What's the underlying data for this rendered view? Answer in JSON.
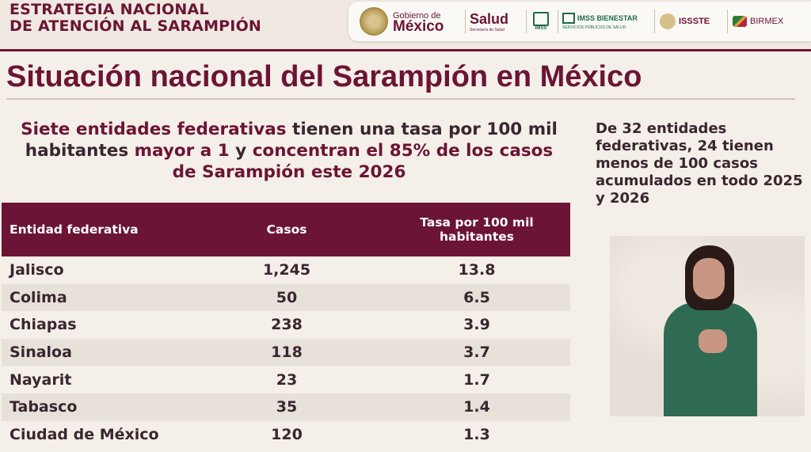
{
  "header": {
    "strategy_line1": "ESTRATEGIA NACIONAL",
    "strategy_line2": "DE ATENCIÓN AL SARAMPIÓN",
    "logos": {
      "gobierno_small": "Gobierno de",
      "gobierno_big": "México",
      "salud": "Salud",
      "salud_sub": "Secretaría de Salud",
      "imss": "IMSS",
      "imss_bienestar": "IMSS BIENESTAR",
      "imss_bienestar_sub": "SERVICIOS PÚBLICOS DE SALUD",
      "issste": "ISSSTE",
      "birmex": "BIRMEX"
    }
  },
  "title": "Situación nacional del Sarampión en México",
  "subhead": {
    "part1": "Siete entidades federativas",
    "part2": " tienen una tasa por 100 mil habitantes ",
    "part3": "mayor a 1",
    "part4": " y ",
    "part5": "concentran el 85% de los casos de Sarampión este 2026"
  },
  "side_note": "De 32 entidades federativas, 24 tienen menos de 100 casos acumulados en todo 2025 y 2026",
  "table": {
    "headers": [
      "Entidad federativa",
      "Casos",
      "Tasa por 100 mil habitantes"
    ],
    "rows": [
      [
        "Jalisco",
        "1,245",
        "13.8"
      ],
      [
        "Colima",
        "50",
        "6.5"
      ],
      [
        "Chiapas",
        "238",
        "3.9"
      ],
      [
        "Sinaloa",
        "118",
        "3.7"
      ],
      [
        "Nayarit",
        "23",
        "1.7"
      ],
      [
        "Tabasco",
        "35",
        "1.4"
      ],
      [
        "Ciudad de México",
        "120",
        "1.3"
      ]
    ]
  },
  "colors": {
    "brand": "#6b1435",
    "background": "#f4efe8",
    "row_alt": "#e7e1d9",
    "text_dark": "#3a2630"
  }
}
